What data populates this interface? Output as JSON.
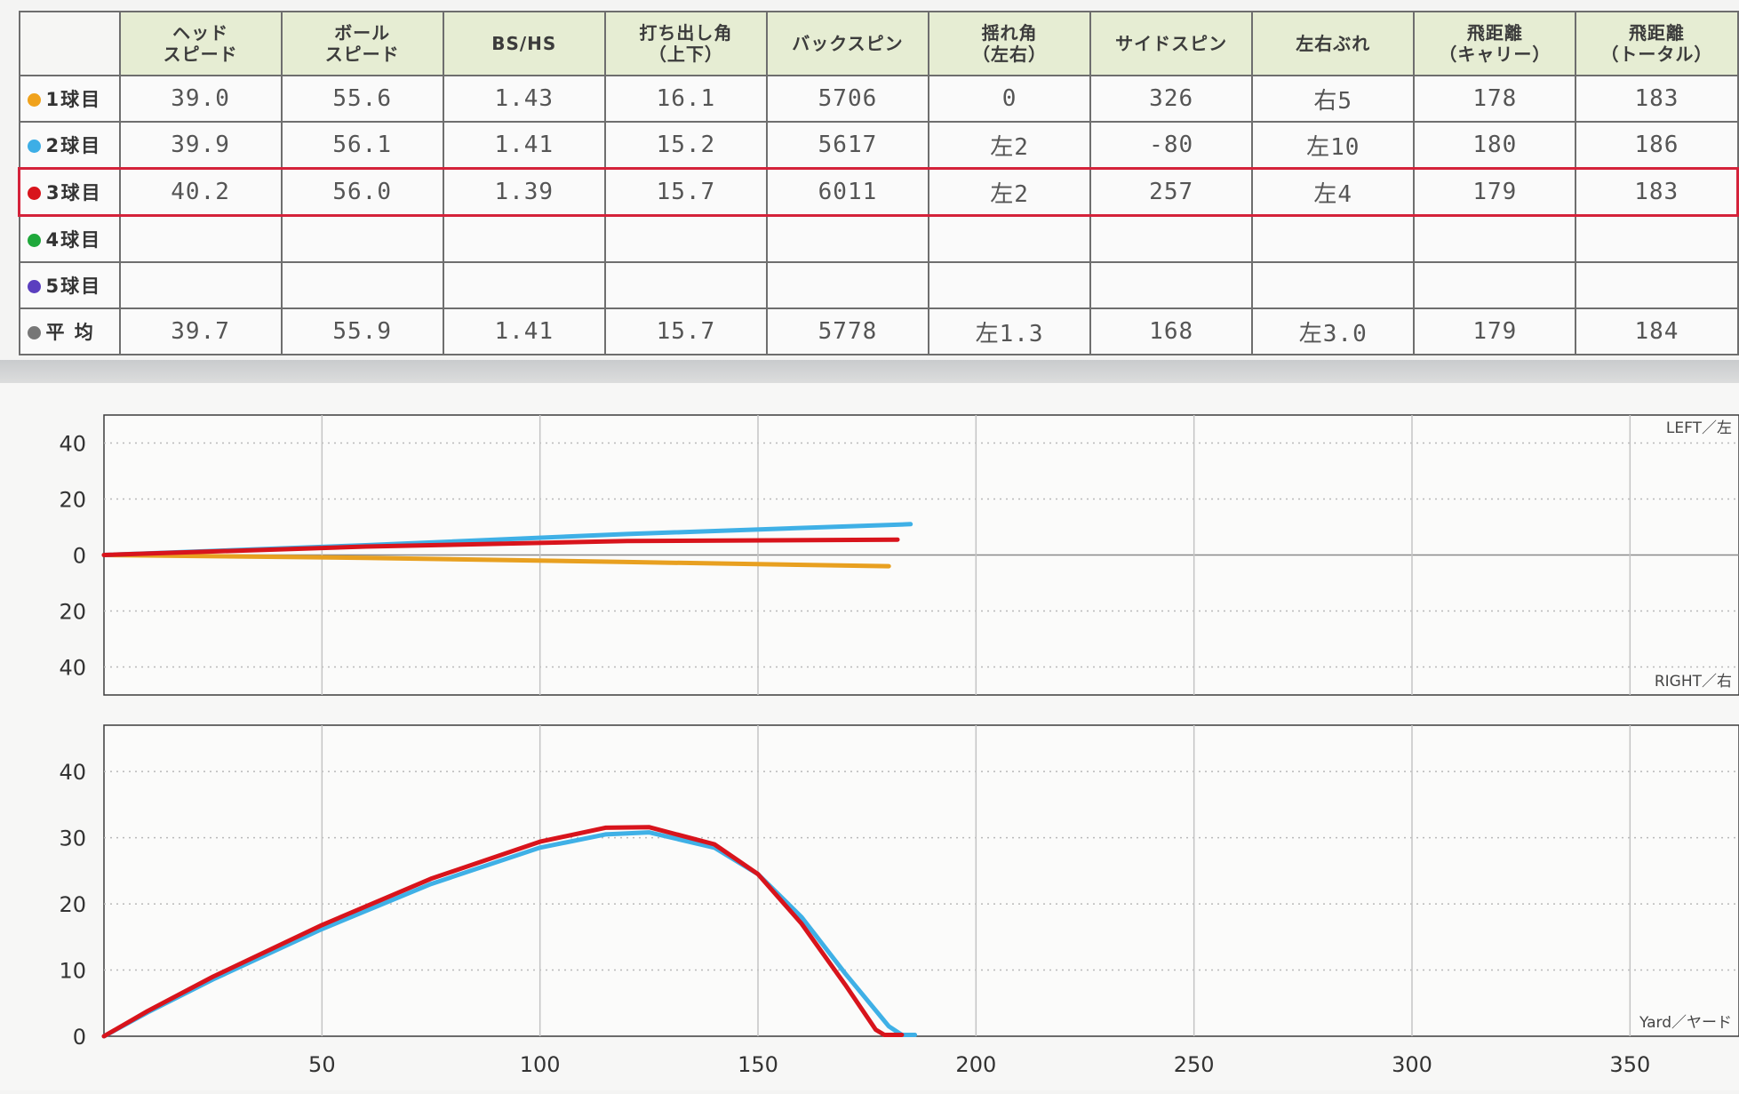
{
  "table": {
    "headers": [
      "",
      "ヘッド\nスピード",
      "ボール\nスピード",
      "BS/HS",
      "打ち出し角\n（上下）",
      "バックスピン",
      "揺れ角\n（左右）",
      "サイドスピン",
      "左右ぶれ",
      "飛距離\n（キャリー）",
      "飛距離\n（トータル）"
    ],
    "rows": [
      {
        "label": "1球目",
        "dot_color": "#f0a21c",
        "highlight": false,
        "cells": [
          "39.0",
          "55.6",
          "1.43",
          "16.1",
          "5706",
          "0",
          "326",
          "右5",
          "178",
          "183"
        ]
      },
      {
        "label": "2球目",
        "dot_color": "#3daee6",
        "highlight": false,
        "cells": [
          "39.9",
          "56.1",
          "1.41",
          "15.2",
          "5617",
          "左2",
          "-80",
          "左10",
          "180",
          "186"
        ]
      },
      {
        "label": "3球目",
        "dot_color": "#d8141c",
        "highlight": true,
        "cells": [
          "40.2",
          "56.0",
          "1.39",
          "15.7",
          "6011",
          "左2",
          "257",
          "左4",
          "179",
          "183"
        ]
      },
      {
        "label": "4球目",
        "dot_color": "#1fa83b",
        "highlight": false,
        "cells": [
          "",
          "",
          "",
          "",
          "",
          "",
          "",
          "",
          "",
          ""
        ]
      },
      {
        "label": "5球目",
        "dot_color": "#5b3fbf",
        "highlight": false,
        "cells": [
          "",
          "",
          "",
          "",
          "",
          "",
          "",
          "",
          "",
          ""
        ]
      },
      {
        "label": "平 均",
        "dot_color": "#777777",
        "highlight": false,
        "cells": [
          "39.7",
          "55.9",
          "1.41",
          "15.7",
          "5778",
          "左1.3",
          "168",
          "左3.0",
          "179",
          "184"
        ]
      }
    ]
  },
  "chart_data": [
    {
      "type": "line",
      "xlim": [
        0,
        375
      ],
      "ylim": [
        -50,
        50
      ],
      "y_ticks": [
        40,
        20,
        0,
        -20,
        -40
      ],
      "y_tick_labels": [
        "40",
        "20",
        "0",
        "20",
        "40"
      ],
      "x_gridlines": [
        50,
        100,
        150,
        200,
        250,
        300,
        350
      ],
      "corner_labels": {
        "top": "LEFT／左",
        "bottom": "RIGHT／右"
      },
      "grid": true,
      "series": [
        {
          "color": "#e8a020",
          "x": [
            0,
            60,
            120,
            180
          ],
          "y": [
            0,
            -1,
            -2.5,
            -4
          ]
        },
        {
          "color": "#3fb0e6",
          "x": [
            0,
            60,
            120,
            185
          ],
          "y": [
            0,
            3.5,
            7.5,
            11
          ]
        },
        {
          "color": "#d8141c",
          "x": [
            0,
            60,
            120,
            182
          ],
          "y": [
            0,
            3,
            5,
            5.5
          ]
        }
      ]
    },
    {
      "type": "line",
      "xlim": [
        0,
        375
      ],
      "ylim": [
        0,
        47
      ],
      "y_ticks": [
        40,
        30,
        20,
        10,
        0
      ],
      "y_tick_labels": [
        "40",
        "30",
        "20",
        "10",
        "0"
      ],
      "x_ticks": [
        50,
        100,
        150,
        200,
        250,
        300,
        350
      ],
      "x_tick_labels": [
        "50",
        "100",
        "150",
        "200",
        "250",
        "300",
        "350"
      ],
      "corner_labels": {
        "bottom": "Yard／ヤード"
      },
      "grid": true,
      "series": [
        {
          "color": "#3fb0e6",
          "x": [
            0,
            10,
            25,
            50,
            75,
            100,
            115,
            125,
            140,
            150,
            160,
            170,
            180,
            183,
            186
          ],
          "y": [
            0,
            3.6,
            8.6,
            16.2,
            23.0,
            28.5,
            30.5,
            30.8,
            28.5,
            24.5,
            18.0,
            9.5,
            1.5,
            0.2,
            0.2
          ]
        },
        {
          "color": "#d8141c",
          "x": [
            0,
            10,
            25,
            50,
            75,
            100,
            115,
            125,
            140,
            150,
            160,
            170,
            177,
            179,
            183
          ],
          "y": [
            0,
            3.8,
            9.0,
            16.8,
            23.8,
            29.4,
            31.5,
            31.6,
            29.0,
            24.5,
            17.0,
            7.8,
            1.0,
            0.2,
            0.2
          ]
        }
      ]
    }
  ]
}
